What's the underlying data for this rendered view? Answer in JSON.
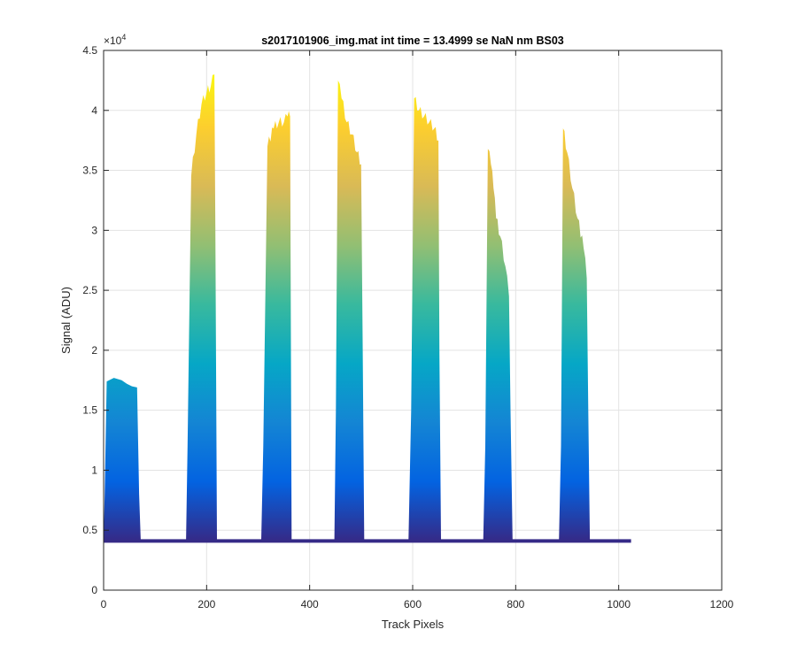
{
  "chart_data": {
    "type": "area",
    "title": "s2017101906_img.mat int time = 13.4999 se  NaN nm BS03",
    "xlabel": "Track Pixels",
    "ylabel": "Signal (ADU)",
    "y_multiplier": "×10",
    "y_exponent": "4",
    "xlim": [
      0,
      1200
    ],
    "ylim": [
      0,
      45000
    ],
    "x_ticks": [
      0,
      200,
      400,
      600,
      800,
      1000,
      1200
    ],
    "x_tick_labels": [
      "0",
      "200",
      "400",
      "600",
      "800",
      "1000",
      "1200"
    ],
    "y_ticks": [
      0,
      5000,
      10000,
      15000,
      20000,
      25000,
      30000,
      35000,
      40000,
      45000
    ],
    "y_tick_labels": [
      "0",
      "0.5",
      "1",
      "1.5",
      "2",
      "2.5",
      "3",
      "3.5",
      "4",
      "4.5"
    ],
    "grid": true,
    "colormap": [
      "#352a87",
      "#0363e1",
      "#1485d4",
      "#06a7c6",
      "#38b99e",
      "#92bf73",
      "#d9ba56",
      "#fcce2e",
      "#f9fb0e"
    ],
    "baseline": 4100,
    "series": [
      {
        "x": [
          0,
          2,
          6,
          20,
          35,
          45,
          55,
          65,
          69,
          72
        ],
        "y": [
          4100,
          8000,
          17400,
          17700,
          17500,
          17200,
          17000,
          16900,
          8000,
          4200
        ]
      },
      {
        "x": [
          160,
          163,
          170,
          180,
          190,
          200,
          208,
          215,
          217,
          220
        ],
        "y": [
          4200,
          12000,
          34500,
          38000,
          40500,
          41500,
          42000,
          43000,
          30000,
          4200
        ]
      },
      {
        "x": [
          306,
          310,
          318,
          330,
          340,
          350,
          357,
          362,
          365
        ],
        "y": [
          4200,
          12000,
          37000,
          38500,
          39000,
          39000,
          39500,
          39500,
          4200
        ]
      },
      {
        "x": [
          448,
          451,
          455,
          462,
          472,
          482,
          492,
          500,
          503,
          506
        ],
        "y": [
          4200,
          15000,
          42500,
          41000,
          39000,
          38000,
          36500,
          35500,
          20000,
          4200
        ]
      },
      {
        "x": [
          592,
          597,
          603,
          612,
          622,
          632,
          642,
          650,
          652,
          655
        ],
        "y": [
          4200,
          15000,
          41000,
          40000,
          39500,
          39000,
          38500,
          37500,
          20000,
          4200
        ]
      },
      {
        "x": [
          737,
          741,
          746,
          752,
          757,
          762,
          770,
          780,
          787,
          790,
          794
        ],
        "y": [
          4200,
          12000,
          36800,
          35500,
          33500,
          31000,
          29500,
          27000,
          24500,
          15000,
          4200
        ]
      },
      {
        "x": [
          884,
          888,
          892,
          900,
          910,
          920,
          932,
          938,
          941,
          944
        ],
        "y": [
          4200,
          12000,
          38500,
          36500,
          33500,
          31000,
          28500,
          26000,
          15000,
          4200
        ]
      }
    ],
    "baseline_x_end": 1024
  }
}
